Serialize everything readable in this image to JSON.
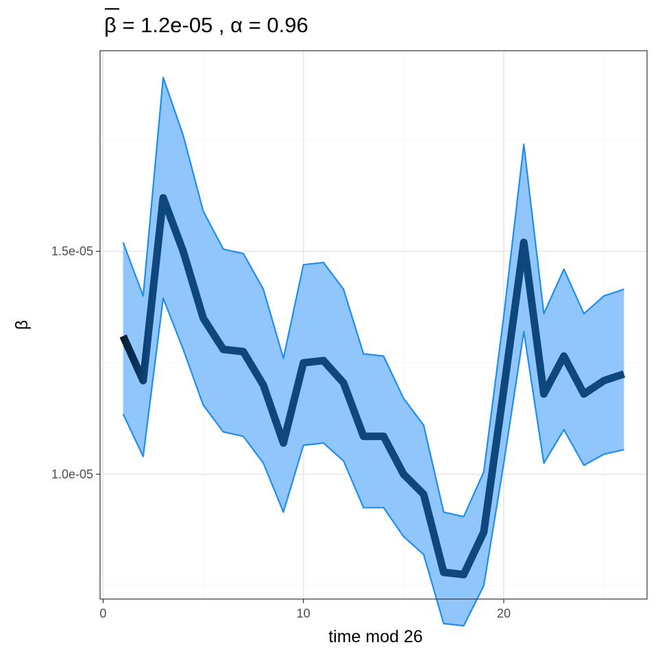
{
  "chart_data": {
    "type": "line",
    "title_symbol": "β",
    "title_rest": " = 1.2e-05 , α = 0.96",
    "xlabel": "time mod 26",
    "ylabel": "β",
    "xlim": [
      -0.15,
      27.15
    ],
    "ylim": [
      7.2e-06,
      1.95e-05
    ],
    "x_ticks": [
      0,
      10,
      20
    ],
    "x_tick_labels": [
      "0",
      "10",
      "20"
    ],
    "y_ticks": [
      1e-05,
      1.5e-05
    ],
    "y_tick_labels": [
      "1.0e-05",
      "1.5e-05"
    ],
    "y_minor_ticks": [
      7.5e-06,
      1.25e-05,
      1.75e-05
    ],
    "x_minor_ticks": [
      5,
      15,
      25
    ],
    "grid": true,
    "x": [
      1,
      2,
      3,
      4,
      5,
      6,
      7,
      8,
      9,
      10,
      11,
      12,
      13,
      14,
      15,
      16,
      17,
      18,
      19,
      20,
      21,
      22,
      23,
      24,
      25,
      26
    ],
    "series": [
      {
        "role": "mean",
        "values": [
          1.31e-05,
          1.21e-05,
          1.62e-05,
          1.5e-05,
          1.35e-05,
          1.28e-05,
          1.275e-05,
          1.2e-05,
          1.07e-05,
          1.25e-05,
          1.255e-05,
          1.205e-05,
          1.085e-05,
          1.085e-05,
          1e-05,
          9.55e-06,
          7.8e-06,
          7.75e-06,
          8.7e-06,
          1.19e-05,
          1.52e-05,
          1.18e-05,
          1.265e-05,
          1.18e-05,
          1.21e-05,
          1.225e-05
        ]
      },
      {
        "role": "upper",
        "values": [
          1.52e-05,
          1.4e-05,
          1.89e-05,
          1.76e-05,
          1.59e-05,
          1.505e-05,
          1.495e-05,
          1.415e-05,
          1.26e-05,
          1.47e-05,
          1.475e-05,
          1.415e-05,
          1.27e-05,
          1.265e-05,
          1.17e-05,
          1.11e-05,
          9.15e-06,
          9.05e-06,
          1.005e-05,
          1.355e-05,
          1.74e-05,
          1.36e-05,
          1.46e-05,
          1.36e-05,
          1.4e-05,
          1.415e-05
        ]
      },
      {
        "role": "lower",
        "values": [
          1.135e-05,
          1.04e-05,
          1.395e-05,
          1.28e-05,
          1.155e-05,
          1.095e-05,
          1.085e-05,
          1.025e-05,
          9.15e-06,
          1.065e-05,
          1.07e-05,
          1.03e-05,
          9.25e-06,
          9.25e-06,
          8.6e-06,
          8.2e-06,
          6.65e-06,
          6.6e-06,
          7.5e-06,
          1.025e-05,
          1.32e-05,
          1.025e-05,
          1.1e-05,
          1.02e-05,
          1.045e-05,
          1.055e-05
        ]
      }
    ],
    "colors": {
      "ribbon_fill": "#90C6FC",
      "ribbon_edge": "#1E8CF0",
      "mean_line": "#0E467E",
      "mean_line_start": "#071E33",
      "panel_border": "#333333",
      "grid_major": "#ebebeb",
      "grid_minor": "#f5f5f5",
      "tick_text": "#4d4d4d"
    }
  }
}
